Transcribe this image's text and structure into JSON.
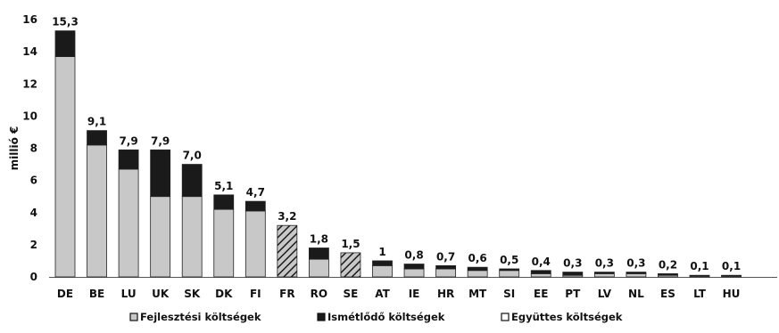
{
  "chart_data": {
    "type": "bar",
    "stacked": true,
    "ylabel": "millió €",
    "ylim": [
      0,
      16
    ],
    "yticks": [
      "0",
      "2",
      "4",
      "6",
      "8",
      "10",
      "12",
      "14",
      "16"
    ],
    "categories": [
      "DE",
      "BE",
      "LU",
      "UK",
      "SK",
      "DK",
      "FI",
      "FR",
      "RO",
      "SE",
      "AT",
      "IE",
      "HR",
      "MT",
      "SI",
      "EE",
      "PT",
      "LV",
      "NL",
      "ES",
      "LT",
      "HU"
    ],
    "totals_labels": [
      "15,3",
      "9,1",
      "7,9",
      "7,9",
      "7,0",
      "5,1",
      "4,7",
      "3,2",
      "1,8",
      "1,5",
      "1",
      "0,8",
      "0,7",
      "0,6",
      "0,5",
      "0,4",
      "0,3",
      "0,3",
      "0,3",
      "0,2",
      "0,1",
      "0,1"
    ],
    "series": [
      {
        "name": "Fejlesztési költségek",
        "color": "#c8c8c8",
        "values": [
          13.7,
          8.2,
          6.7,
          5.0,
          5.0,
          4.2,
          4.1,
          0,
          1.1,
          0,
          0.7,
          0.5,
          0.5,
          0.4,
          0.4,
          0.2,
          0.1,
          0.2,
          0.2,
          0.1,
          0.05,
          0.05
        ]
      },
      {
        "name": "Ismétlődő költségek",
        "color": "#1a1a1a",
        "values": [
          1.6,
          0.9,
          1.2,
          2.9,
          2.0,
          0.9,
          0.6,
          0,
          0.7,
          0,
          0.3,
          0.3,
          0.2,
          0.2,
          0.1,
          0.2,
          0.2,
          0.1,
          0.1,
          0.1,
          0.05,
          0.05
        ]
      },
      {
        "name": "Együttes költségek",
        "color": "#c8c8c8",
        "pattern": "hatched",
        "values": [
          0,
          0,
          0,
          0,
          0,
          0,
          0,
          3.2,
          0,
          1.5,
          0,
          0,
          0,
          0,
          0,
          0,
          0,
          0,
          0,
          0,
          0,
          0
        ]
      }
    ],
    "grid": false,
    "legend_position": "bottom"
  }
}
